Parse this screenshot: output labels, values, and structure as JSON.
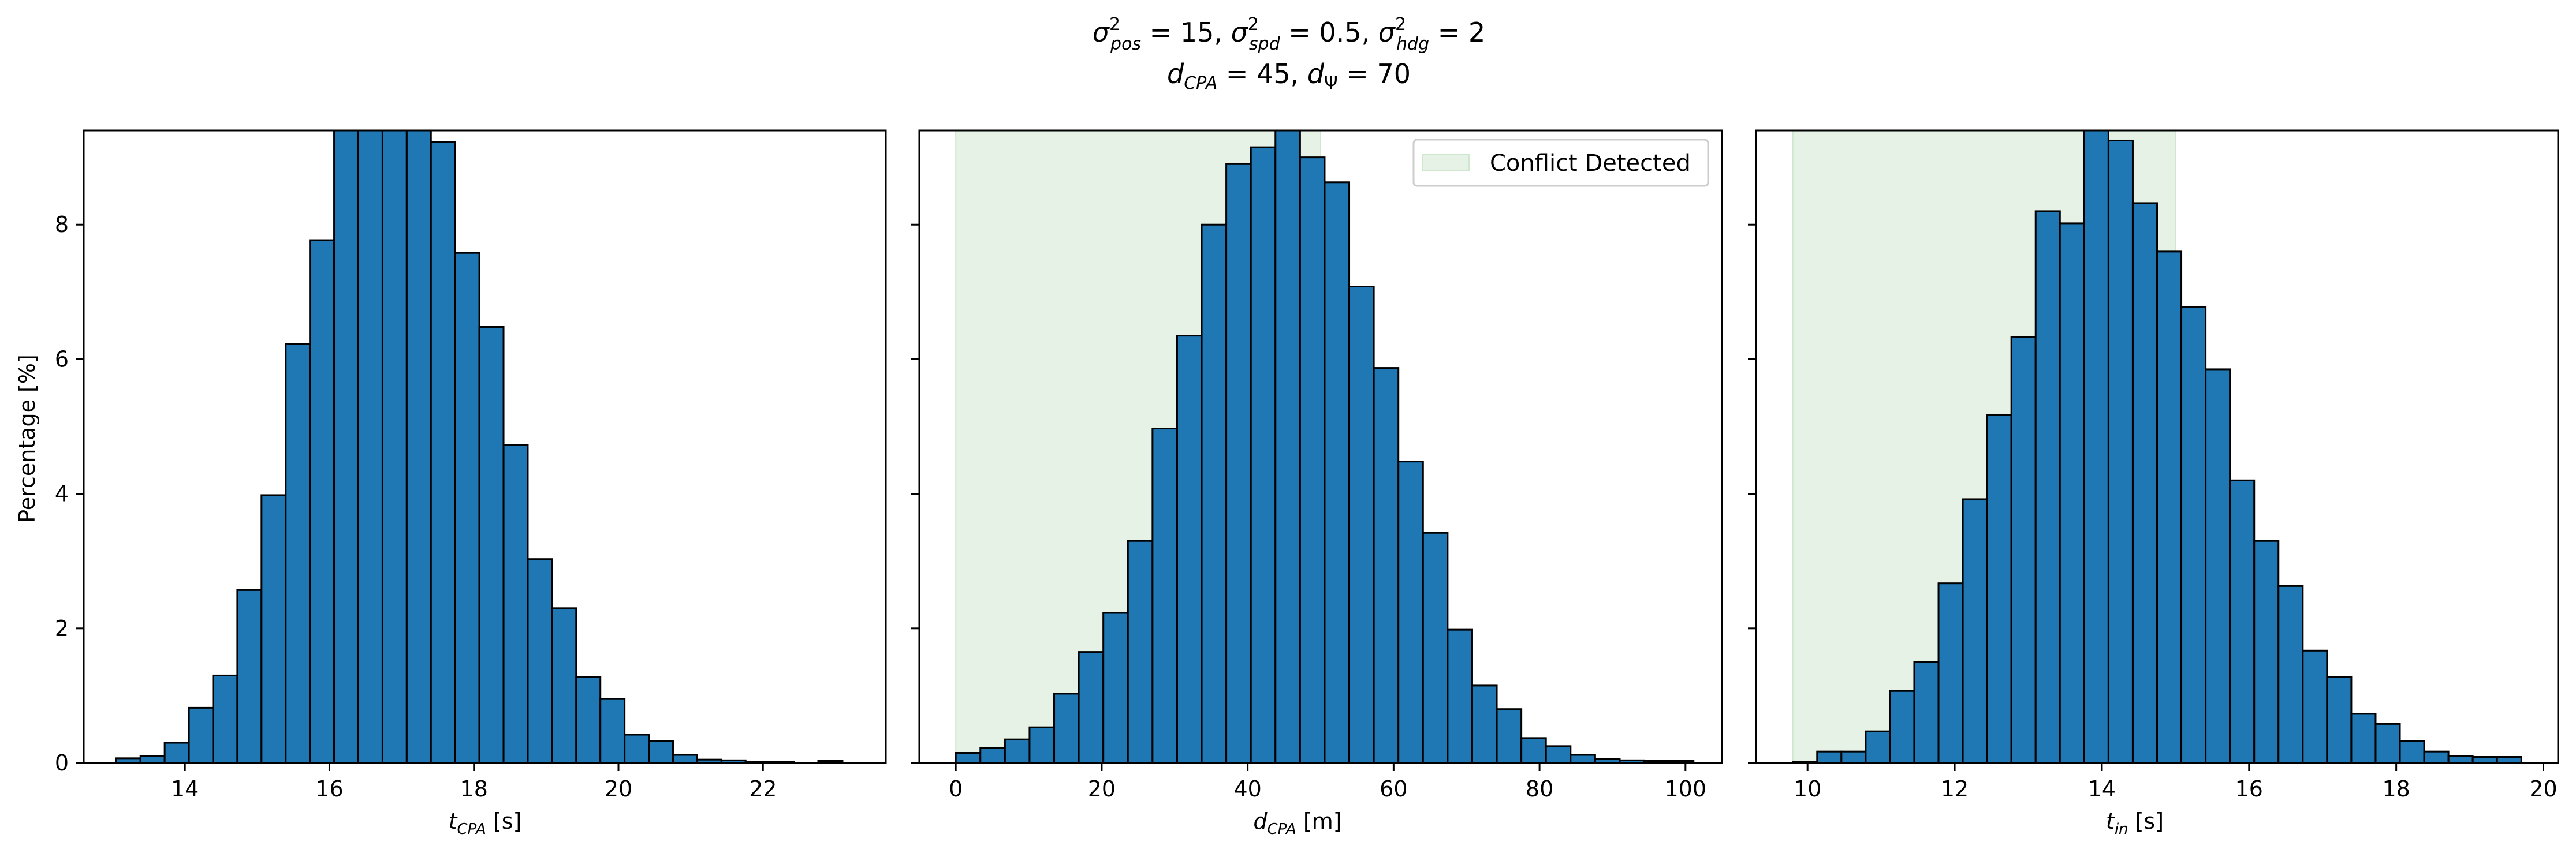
{
  "figure": {
    "title_line1": "σ²pos = 15, σ²spd = 0.5, σ²hdg = 2",
    "title_line2": "dCPA = 45, dΨ = 70"
  },
  "colors": {
    "bar": "#1f77b4",
    "edge": "#000000",
    "shade": "#e5f2e5",
    "shade_edge": "#cfe6cf"
  },
  "chart_data": [
    {
      "type": "bar",
      "subtype": "histogram",
      "xlabel": "tCPA [s]",
      "ylabel": "Percentage [%]",
      "xlim": [
        12.6,
        23.7
      ],
      "ylim": [
        0,
        9.4
      ],
      "xticks": [
        14,
        16,
        18,
        20,
        22
      ],
      "yticks": [
        0,
        2,
        4,
        6,
        8
      ],
      "bin_start": 13.05,
      "bin_width": 0.335,
      "values": [
        0.07,
        0.1,
        0.3,
        0.82,
        1.3,
        2.57,
        3.98,
        6.23,
        7.77,
        9.5,
        9.5,
        9.5,
        9.5,
        9.23,
        7.58,
        6.48,
        4.73,
        3.03,
        2.3,
        1.28,
        0.95,
        0.42,
        0.33,
        0.12,
        0.05,
        0.04,
        0.02,
        0.02,
        0.0,
        0.03
      ],
      "grid": false,
      "legend": null
    },
    {
      "type": "bar",
      "subtype": "histogram",
      "xlabel": "dCPA [m]",
      "ylabel": "",
      "xlim": [
        -5,
        105
      ],
      "ylim": [
        0,
        9.4
      ],
      "xticks": [
        0,
        20,
        40,
        60,
        80,
        100
      ],
      "yticks": [
        0,
        2,
        4,
        6,
        8
      ],
      "bin_start": 0.0,
      "bin_width": 3.37,
      "values": [
        0.15,
        0.22,
        0.35,
        0.53,
        1.03,
        1.65,
        2.23,
        3.3,
        4.97,
        6.35,
        8.0,
        8.9,
        9.15,
        9.5,
        9.0,
        8.63,
        7.08,
        5.87,
        4.48,
        3.42,
        1.98,
        1.15,
        0.8,
        0.37,
        0.25,
        0.12,
        0.06,
        0.04,
        0.03,
        0.03
      ],
      "shaded_region": {
        "x0": 0,
        "x1": 50,
        "label": "Conflict Detected"
      },
      "grid": false,
      "legend": "upper right"
    },
    {
      "type": "bar",
      "subtype": "histogram",
      "xlabel": "tin [s]",
      "ylabel": "",
      "xlim": [
        9.3,
        20.2
      ],
      "ylim": [
        0,
        9.4
      ],
      "xticks": [
        10,
        12,
        14,
        16,
        18,
        20
      ],
      "yticks": [
        0,
        2,
        4,
        6,
        8
      ],
      "bin_start": 9.8,
      "bin_width": 0.33,
      "values": [
        0.02,
        0.17,
        0.17,
        0.47,
        1.07,
        1.5,
        2.67,
        3.92,
        5.17,
        6.33,
        8.2,
        8.02,
        9.5,
        9.25,
        8.32,
        7.6,
        6.78,
        5.85,
        4.2,
        3.3,
        2.63,
        1.67,
        1.28,
        0.73,
        0.58,
        0.33,
        0.17,
        0.1,
        0.09,
        0.09
      ],
      "shaded_region": {
        "x0": 9.8,
        "x1": 15.0,
        "label": ""
      },
      "grid": false,
      "legend": null
    }
  ]
}
